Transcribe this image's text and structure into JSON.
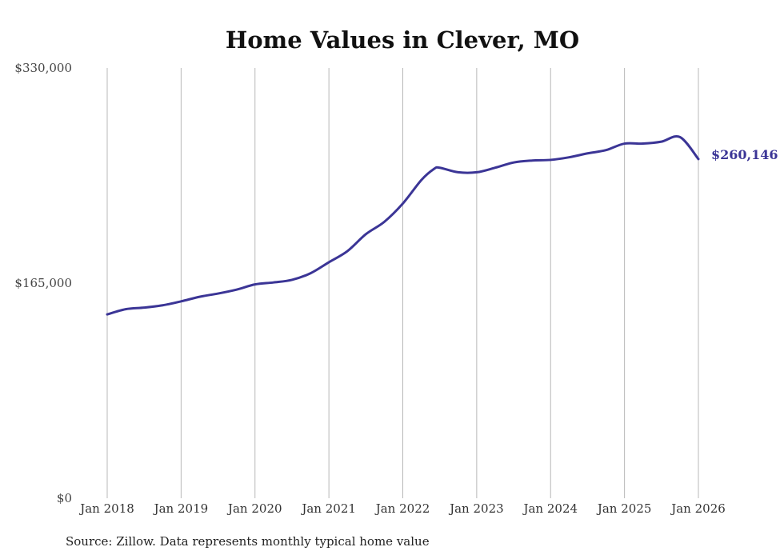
{
  "chart_data": {
    "type": "line",
    "title": "Home Values in Clever, MO",
    "xlabel": "",
    "ylabel": "",
    "ylim": [
      0,
      330000
    ],
    "y_ticks": [
      {
        "value": 0,
        "label": "$0"
      },
      {
        "value": 165000,
        "label": "$165,000"
      },
      {
        "value": 330000,
        "label": "$330,000"
      }
    ],
    "x_ticks": [
      {
        "t": 2018,
        "label": "Jan 2018"
      },
      {
        "t": 2019,
        "label": "Jan 2019"
      },
      {
        "t": 2020,
        "label": "Jan 2020"
      },
      {
        "t": 2021,
        "label": "Jan 2021"
      },
      {
        "t": 2022,
        "label": "Jan 2022"
      },
      {
        "t": 2023,
        "label": "Jan 2023"
      },
      {
        "t": 2024,
        "label": "Jan 2024"
      },
      {
        "t": 2025,
        "label": "Jan 2025"
      },
      {
        "t": 2026,
        "label": "Jan 2026"
      }
    ],
    "grid": "vertical",
    "series": [
      {
        "name": "Typical home value",
        "color": "#3b3596",
        "end_label": "$260,146",
        "x": [
          2018.0,
          2018.25,
          2018.5,
          2018.75,
          2019.0,
          2019.25,
          2019.5,
          2019.75,
          2020.0,
          2020.25,
          2020.5,
          2020.75,
          2021.0,
          2021.25,
          2021.5,
          2021.75,
          2022.0,
          2022.25,
          2022.42,
          2022.5,
          2022.75,
          2023.0,
          2023.25,
          2023.5,
          2023.75,
          2024.0,
          2024.25,
          2024.5,
          2024.75,
          2025.0,
          2025.25,
          2025.5,
          2025.75,
          2026.0
        ],
        "y": [
          141000,
          145000,
          146200,
          148000,
          151000,
          154500,
          157000,
          160000,
          164000,
          165500,
          167500,
          172500,
          181000,
          189500,
          202500,
          212000,
          226000,
          244000,
          252500,
          253500,
          250000,
          250000,
          253500,
          257500,
          259000,
          259500,
          261500,
          264500,
          267000,
          272000,
          272000,
          273500,
          277000,
          260146
        ]
      }
    ]
  },
  "footer": {
    "source": "Source: Zillow. Data represents monthly typical home value"
  }
}
